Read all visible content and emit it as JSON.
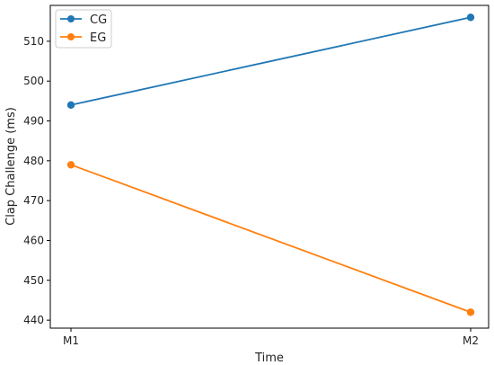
{
  "chart_data": {
    "type": "line",
    "title": "",
    "xlabel": "Time",
    "ylabel": "Clap Challenge (ms)",
    "categories": [
      "M1",
      "M2"
    ],
    "ylim": [
      438,
      519
    ],
    "yticks": [
      440,
      450,
      460,
      470,
      480,
      490,
      500,
      510
    ],
    "grid": false,
    "legend_position": "top-left",
    "series": [
      {
        "name": "CG",
        "color": "#1f77b4",
        "values": [
          494,
          516
        ]
      },
      {
        "name": "EG",
        "color": "#ff7f0e",
        "values": [
          479,
          442
        ]
      }
    ]
  }
}
